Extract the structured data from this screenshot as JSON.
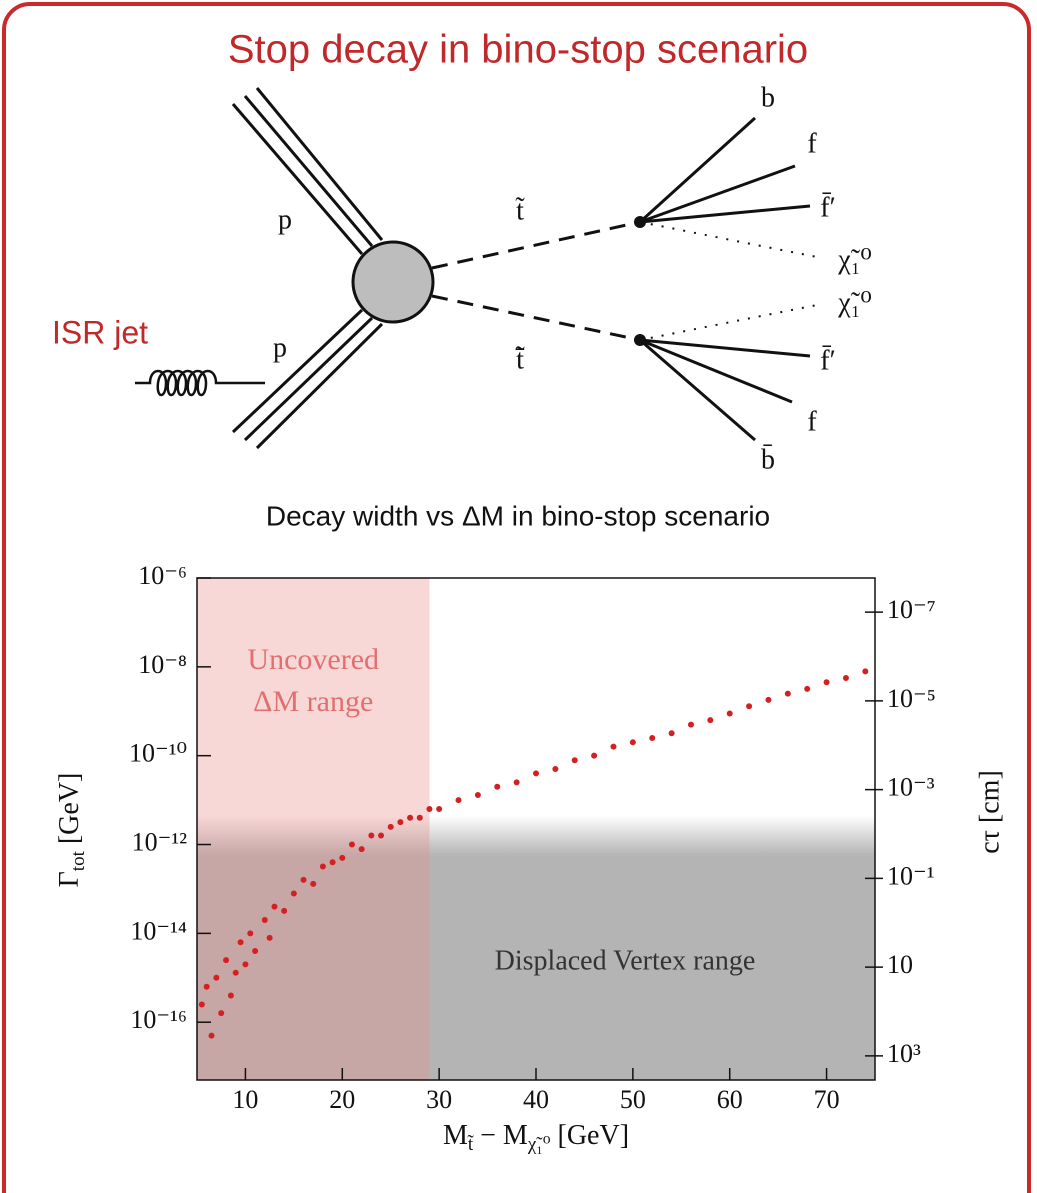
{
  "slide_title": "Stop decay in bino-stop scenario",
  "diagram": {
    "labels": {
      "p_top": "p",
      "p_bottom": "p",
      "stop": "t̃",
      "antistop": "t̃̄",
      "b": "b",
      "f_top": "f",
      "fbar_top": "f̄′",
      "chi_top": "χ̃₁⁰",
      "chi_bottom": "χ̃₁⁰",
      "fbar_bottom": "f̄′",
      "f_bottom": "f",
      "bbar": "b̄",
      "isr": "ISR jet"
    }
  },
  "chart_data": {
    "type": "scatter",
    "title": "Decay width vs ΔM in bino-stop scenario",
    "xlabel": {
      "m1": "M",
      "sub1": "t̃",
      "m2": " − M",
      "sub2": "χ̃₁⁰",
      "unit": " [GeV]"
    },
    "ylabel": {
      "symbol": "Γ",
      "sub": "tot",
      "unit": " [GeV]"
    },
    "y2label": "cτ [cm]",
    "log_scale": true,
    "color": "#d42020",
    "xlim": [
      5,
      75
    ],
    "xticks": [
      10,
      20,
      30,
      40,
      50,
      60,
      70
    ],
    "ylim": [
      5e-18,
      1e-06
    ],
    "yticks": [
      {
        "value": 1e-06,
        "label": "10⁻⁶"
      },
      {
        "value": 1e-08,
        "label": "10⁻⁸"
      },
      {
        "value": 1e-10,
        "label": "10⁻¹⁰"
      },
      {
        "value": 1e-12,
        "label": "10⁻¹²"
      },
      {
        "value": 1e-14,
        "label": "10⁻¹⁴"
      },
      {
        "value": 1e-16,
        "label": "10⁻¹⁶"
      }
    ],
    "y2lim": [
      3500,
      1.7e-08
    ],
    "y2ticks": [
      {
        "value": 1e-07,
        "label": "10⁻⁷"
      },
      {
        "value": 1e-05,
        "label": "10⁻⁵"
      },
      {
        "value": 0.001,
        "label": "10⁻³"
      },
      {
        "value": 0.1,
        "label": "10⁻¹"
      },
      10,
      {
        "value": 1000,
        "label": "10³"
      }
    ],
    "annotations": [
      {
        "lines": [
          "Uncovered",
          "ΔM range"
        ],
        "xrange": [
          5,
          29
        ],
        "color": "#e07070"
      },
      {
        "text": "Displaced Vertex range",
        "yrange": [
          5e-18,
          1.6e-12
        ],
        "color": "#333333"
      }
    ],
    "x": [
      5.5,
      6,
      6.5,
      7,
      7.5,
      8,
      8.5,
      9,
      9.5,
      10,
      10.5,
      11,
      12,
      12.5,
      13,
      14,
      15,
      16,
      17,
      18,
      19,
      20,
      21,
      22,
      23,
      24,
      25,
      26,
      27,
      28,
      29,
      30,
      32,
      34,
      36,
      38,
      40,
      42,
      44,
      46,
      48,
      50,
      52,
      54,
      56,
      58,
      60,
      62,
      64,
      66,
      68,
      70,
      72,
      74
    ],
    "values": [
      2.5e-16,
      6.3e-16,
      5e-17,
      1e-15,
      1.6e-16,
      2.5e-15,
      4e-16,
      1.3e-15,
      6.3e-15,
      2e-15,
      1e-14,
      4e-15,
      2e-14,
      7.9e-15,
      4e-14,
      3.2e-14,
      7.9e-14,
      1.6e-13,
      1.3e-13,
      3.2e-13,
      4e-13,
      5e-13,
      1e-12,
      7.9e-13,
      1.6e-12,
      1.6e-12,
      2.5e-12,
      3.2e-12,
      4e-12,
      4e-12,
      6.3e-12,
      6.3e-12,
      1e-11,
      1.3e-11,
      2e-11,
      2.5e-11,
      4e-11,
      5e-11,
      7.9e-11,
      1e-10,
      1.6e-10,
      2e-10,
      2.5e-10,
      3.2e-10,
      5e-10,
      6.3e-10,
      8.9e-10,
      1.3e-09,
      1.8e-09,
      2.5e-09,
      3.2e-09,
      4.5e-09,
      5.6e-09,
      7.9e-09
    ]
  }
}
